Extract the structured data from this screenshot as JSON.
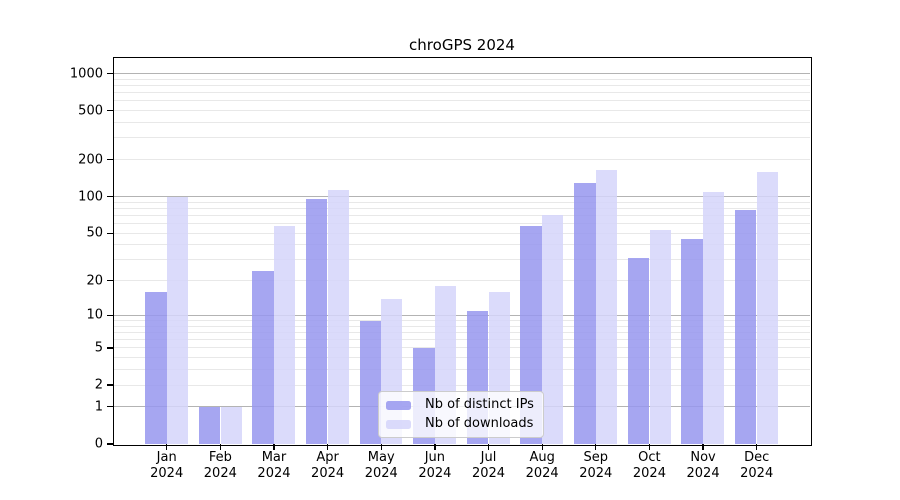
{
  "chart_data": {
    "type": "bar",
    "title": "chroGPS 2024",
    "categories": [
      "Jan",
      "Feb",
      "Mar",
      "Apr",
      "May",
      "Jun",
      "Jul",
      "Aug",
      "Sep",
      "Oct",
      "Nov",
      "Dec"
    ],
    "x_year_label": "2024",
    "series": [
      {
        "name": "Nb of distinct IPs",
        "color": "rgba(150,150,238,0.85)",
        "values": [
          16,
          1,
          24,
          95,
          9,
          5,
          11,
          57,
          129,
          31,
          45,
          77
        ]
      },
      {
        "name": "Nb of downloads",
        "color": "rgba(213,213,250,0.85)",
        "values": [
          100,
          1,
          57,
          114,
          14,
          18,
          16,
          71,
          165,
          53,
          109,
          158
        ]
      }
    ],
    "xlabel": "",
    "ylabel": "",
    "y_axis": {
      "scale": "log10(1+x)",
      "tick_values": [
        0,
        1,
        2,
        5,
        10,
        20,
        50,
        100,
        200,
        500,
        1000
      ],
      "major_gridlines": [
        1,
        10,
        100,
        1000
      ],
      "minor_gridlines": [
        2,
        3,
        4,
        5,
        6,
        7,
        8,
        9,
        20,
        30,
        40,
        50,
        60,
        70,
        80,
        90,
        200,
        300,
        400,
        500,
        600,
        700,
        800,
        900
      ],
      "top_value": 1324,
      "ylim": [
        0,
        1324
      ]
    },
    "legend": {
      "position": "lower center",
      "items": [
        "Nb of distinct IPs",
        "Nb of downloads"
      ]
    },
    "grid": true,
    "colors": {
      "background": "#ffffff",
      "major_grid": "#b3b3b3",
      "minor_grid": "#e8e8e8",
      "axis": "#000000",
      "text": "#000000",
      "legend_border": "#cccccc"
    }
  }
}
